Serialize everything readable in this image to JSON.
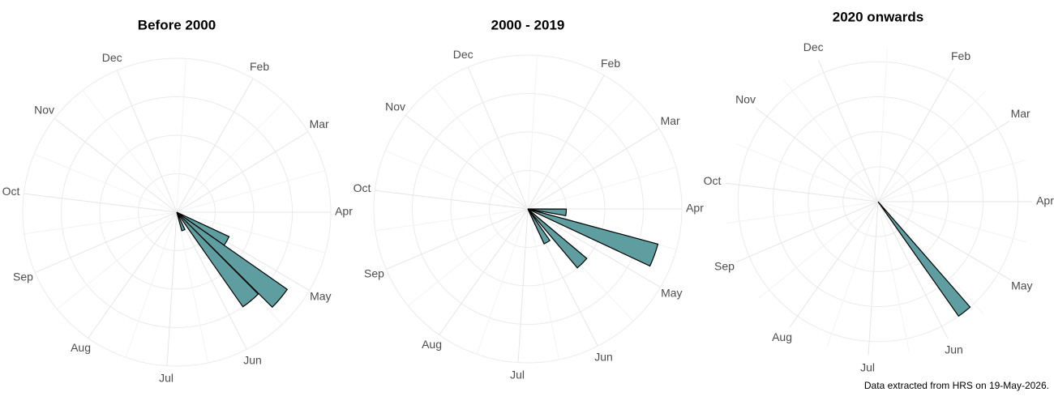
{
  "chart_data": [
    {
      "type": "polar_bar",
      "title": "Before 2000",
      "color": "#5f9ea0",
      "x": [
        4.0,
        4.33,
        4.67,
        5.33
      ],
      "values": [
        3,
        7,
        6,
        1
      ],
      "xlim": [
        0,
        12
      ],
      "xticks": [
        {
          "value": 0.99,
          "label": "Feb"
        },
        {
          "value": 1.95,
          "label": "Mar"
        },
        {
          "value": 3,
          "label": "Apr"
        },
        {
          "value": 4.02,
          "label": "May"
        },
        {
          "value": 5.1,
          "label": "Jun"
        },
        {
          "value": 6.12,
          "label": "Jul"
        },
        {
          "value": 7.17,
          "label": "Aug"
        },
        {
          "value": 8.23,
          "label": "Sep"
        },
        {
          "value": 9.23,
          "label": "Oct"
        },
        {
          "value": 10.25,
          "label": "Nov"
        },
        {
          "value": 11.24,
          "label": "Dec"
        }
      ],
      "ylim": [
        0,
        8
      ],
      "yticks": [
        2,
        4,
        6,
        8
      ]
    },
    {
      "type": "polar_bar",
      "title": "2000 - 2019",
      "color": "#5f9ea0",
      "x": [
        3.17,
        3.67,
        4.5,
        5.0
      ],
      "values": [
        2,
        7,
        4,
        2
      ],
      "xlim": [
        0,
        12
      ],
      "xticks": [
        {
          "value": 0.99,
          "label": "Feb"
        },
        {
          "value": 1.95,
          "label": "Mar"
        },
        {
          "value": 3,
          "label": "Apr"
        },
        {
          "value": 4.02,
          "label": "May"
        },
        {
          "value": 5.1,
          "label": "Jun"
        },
        {
          "value": 6.12,
          "label": "Jul"
        },
        {
          "value": 7.17,
          "label": "Aug"
        },
        {
          "value": 8.23,
          "label": "Sep"
        },
        {
          "value": 9.23,
          "label": "Oct"
        },
        {
          "value": 10.25,
          "label": "Nov"
        },
        {
          "value": 11.24,
          "label": "Dec"
        }
      ],
      "ylim": [
        0,
        8
      ],
      "yticks": [
        2,
        4,
        6,
        8
      ]
    },
    {
      "type": "polar_bar",
      "title": "2020 onwards",
      "color": "#5f9ea0",
      "x": [
        4.73
      ],
      "values": [
        1
      ],
      "xlim": [
        0,
        12
      ],
      "xticks": [
        {
          "value": 0.99,
          "label": "Feb"
        },
        {
          "value": 1.95,
          "label": "Mar"
        },
        {
          "value": 3,
          "label": "Apr"
        },
        {
          "value": 4.02,
          "label": "May"
        },
        {
          "value": 5.1,
          "label": "Jun"
        },
        {
          "value": 6.12,
          "label": "Jul"
        },
        {
          "value": 7.17,
          "label": "Aug"
        },
        {
          "value": 8.23,
          "label": "Sep"
        },
        {
          "value": 9.23,
          "label": "Oct"
        },
        {
          "value": 10.25,
          "label": "Nov"
        },
        {
          "value": 11.24,
          "label": "Dec"
        }
      ],
      "ylim": [
        0,
        1.1
      ],
      "yticks": [
        0.25,
        0.5,
        0.75,
        1
      ]
    }
  ],
  "caption": "Data extracted from HRS on 19-May-2026."
}
